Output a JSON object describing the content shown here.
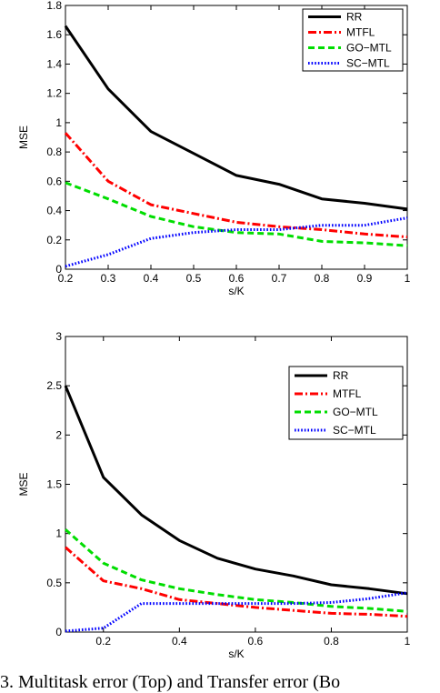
{
  "caption": "3. Multitask error (Top) and Transfer error (Bo",
  "chart_data": [
    {
      "type": "line",
      "xlabel": "s/K",
      "ylabel": "MSE",
      "xlim": [
        0.2,
        1.0
      ],
      "ylim": [
        0,
        1.8
      ],
      "xticks": [
        "0.2",
        "0.3",
        "0.4",
        "0.5",
        "0.6",
        "0.7",
        "0.8",
        "0.9",
        "1"
      ],
      "yticks": [
        "0",
        "0.2",
        "0.4",
        "0.6",
        "0.8",
        "1",
        "1.2",
        "1.4",
        "1.6",
        "1.8"
      ],
      "grid": false,
      "legend_position": "top-right",
      "x": [
        0.2,
        0.3,
        0.4,
        0.5,
        0.6,
        0.7,
        0.8,
        0.9,
        1.0
      ],
      "series": [
        {
          "name": "RR",
          "color": "#000000",
          "style": "solid",
          "values": [
            1.66,
            1.23,
            0.94,
            0.79,
            0.64,
            0.58,
            0.48,
            0.45,
            0.41
          ]
        },
        {
          "name": "MTFL",
          "color": "#ff0000",
          "style": "dashdot",
          "values": [
            0.93,
            0.6,
            0.44,
            0.38,
            0.32,
            0.29,
            0.27,
            0.24,
            0.22
          ]
        },
        {
          "name": "GO−MTL",
          "color": "#00dd00",
          "style": "dashed",
          "values": [
            0.59,
            0.48,
            0.36,
            0.29,
            0.25,
            0.24,
            0.19,
            0.18,
            0.16
          ]
        },
        {
          "name": "SC−MTL",
          "color": "#0000ff",
          "style": "dotted",
          "values": [
            0.02,
            0.1,
            0.21,
            0.25,
            0.27,
            0.27,
            0.3,
            0.3,
            0.35
          ]
        }
      ]
    },
    {
      "type": "line",
      "xlabel": "s/K",
      "ylabel": "MSE",
      "xlim": [
        0.1,
        1.0
      ],
      "ylim": [
        0,
        3
      ],
      "xticks": [
        "0.2",
        "0.4",
        "0.6",
        "0.8",
        "1"
      ],
      "yticks": [
        "0",
        "0.5",
        "1",
        "1.5",
        "2",
        "2.5",
        "3"
      ],
      "grid": false,
      "legend_position": "top-right",
      "x": [
        0.1,
        0.2,
        0.3,
        0.4,
        0.5,
        0.6,
        0.7,
        0.8,
        0.9,
        1.0
      ],
      "series": [
        {
          "name": "RR",
          "color": "#000000",
          "style": "solid",
          "values": [
            2.5,
            1.57,
            1.19,
            0.93,
            0.75,
            0.64,
            0.57,
            0.48,
            0.44,
            0.39
          ]
        },
        {
          "name": "MTFL",
          "color": "#ff0000",
          "style": "dashdot",
          "values": [
            0.86,
            0.52,
            0.44,
            0.33,
            0.29,
            0.25,
            0.22,
            0.19,
            0.18,
            0.16
          ]
        },
        {
          "name": "GO−MTL",
          "color": "#00dd00",
          "style": "dashed",
          "values": [
            1.04,
            0.7,
            0.53,
            0.44,
            0.38,
            0.33,
            0.3,
            0.26,
            0.24,
            0.21
          ]
        },
        {
          "name": "SC−MTL",
          "color": "#0000ff",
          "style": "dotted",
          "values": [
            0.01,
            0.04,
            0.29,
            0.29,
            0.29,
            0.29,
            0.29,
            0.3,
            0.34,
            0.4
          ]
        }
      ]
    }
  ]
}
